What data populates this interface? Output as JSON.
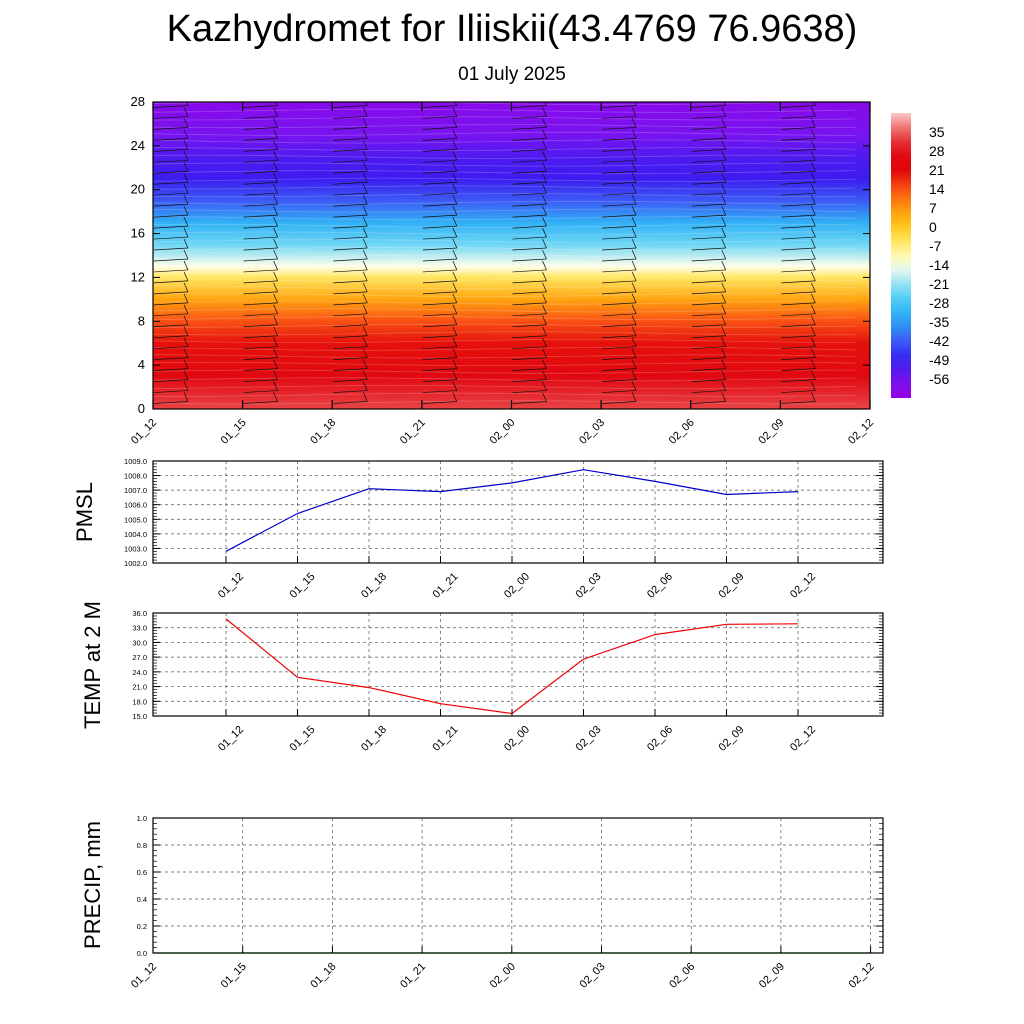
{
  "page": {
    "title": "Kazhydromet for Iliiskii(43.4769 76.9638)",
    "subtitle": "01 July 2025"
  },
  "chart_data": [
    {
      "type": "heatmap",
      "name": "upper-air-temperature-cross-section",
      "x_ticks": [
        "01_12",
        "01_15",
        "01_18",
        "01_21",
        "02_00",
        "02_03",
        "02_06",
        "02_09",
        "02_12"
      ],
      "y_ticks": [
        "0",
        "4",
        "8",
        "12",
        "16",
        "20",
        "24",
        "28"
      ],
      "ylim": [
        0,
        28
      ],
      "colorbar": {
        "labels": [
          "35",
          "28",
          "21",
          "14",
          "7",
          "0",
          "-7",
          "-14",
          "-21",
          "-28",
          "-35",
          "-42",
          "-49",
          "-56"
        ],
        "range": [
          -63,
          42
        ]
      },
      "temperature_profile": [
        {
          "level": 0,
          "value": 33
        },
        {
          "level": 3,
          "value": 26
        },
        {
          "level": 6,
          "value": 20
        },
        {
          "level": 8,
          "value": 14
        },
        {
          "level": 10,
          "value": 5
        },
        {
          "level": 12,
          "value": -5
        },
        {
          "level": 13,
          "value": -14
        },
        {
          "level": 15,
          "value": -24
        },
        {
          "level": 17,
          "value": -32
        },
        {
          "level": 19,
          "value": -42
        },
        {
          "level": 21,
          "value": -50
        },
        {
          "level": 23,
          "value": -52
        },
        {
          "level": 25,
          "value": -56
        },
        {
          "level": 28,
          "value": -60
        }
      ],
      "wind_barbs": "present"
    },
    {
      "type": "line",
      "name": "pmsl",
      "ylabel": "PMSL",
      "x": [
        "01_12",
        "01_15",
        "01_18",
        "01_21",
        "02_00",
        "02_03",
        "02_06",
        "02_09",
        "02_12"
      ],
      "y_ticks": [
        "1002.0",
        "1003.0",
        "1004.0",
        "1005.0",
        "1006.0",
        "1007.0",
        "1008.0",
        "1009.0"
      ],
      "ylim": [
        1002.0,
        1009.0
      ],
      "grid": true,
      "series": [
        {
          "color": "#0000cc",
          "values": [
            1002.8,
            1005.4,
            1007.1,
            1006.9,
            1007.5,
            1008.4,
            1007.6,
            1006.7,
            1006.9
          ]
        }
      ]
    },
    {
      "type": "line",
      "name": "temp-2m",
      "ylabel": "TEMP at 2 M",
      "x": [
        "01_12",
        "01_15",
        "01_18",
        "01_21",
        "02_00",
        "02_03",
        "02_06",
        "02_09",
        "02_12"
      ],
      "y_ticks": [
        "15.0",
        "18.0",
        "21.0",
        "24.0",
        "27.0",
        "30.0",
        "33.0",
        "36.0"
      ],
      "ylim": [
        15.0,
        36.0
      ],
      "grid": true,
      "series": [
        {
          "color": "#ee0000",
          "values": [
            34.8,
            22.9,
            20.8,
            17.5,
            15.5,
            26.6,
            31.6,
            33.7,
            33.8
          ]
        }
      ]
    },
    {
      "type": "line",
      "name": "precip",
      "ylabel": "PRECIP, mm",
      "x": [
        "01_12",
        "01_15",
        "01_18",
        "01_21",
        "02_00",
        "02_03",
        "02_06",
        "02_09",
        "02_12"
      ],
      "y_ticks": [
        "0.0",
        "0.2",
        "0.4",
        "0.6",
        "0.8",
        "1.0"
      ],
      "ylim": [
        0.0,
        1.0
      ],
      "grid": true,
      "series": [
        {
          "color": "#00aa00",
          "values": [
            0,
            0,
            0,
            0,
            0,
            0,
            0,
            0,
            0
          ]
        }
      ]
    }
  ]
}
